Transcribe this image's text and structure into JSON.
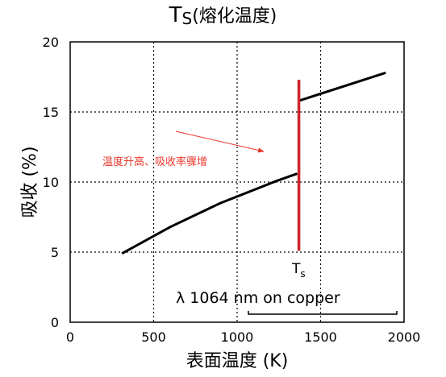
{
  "chart_data": {
    "type": "line",
    "title_main": "T",
    "title_sub": "S",
    "title_suffix": "(熔化温度)",
    "xlabel": "表面温度 (K)",
    "ylabel": "吸收 (%)",
    "xlim": [
      0,
      2000
    ],
    "ylim": [
      0,
      20
    ],
    "xticks": [
      0,
      500,
      1000,
      1500,
      2000
    ],
    "yticks": [
      0,
      5,
      10,
      15,
      20
    ],
    "grid": true,
    "series": [
      {
        "color": "#000000",
        "x": [
          310,
          600,
          900,
          1240,
          1360
        ],
        "y": [
          4.9,
          6.8,
          8.5,
          10.1,
          10.6
        ]
      },
      {
        "color": "#000000",
        "x": [
          1370,
          1890
        ],
        "y": [
          15.8,
          17.8
        ]
      }
    ],
    "melting_line": {
      "x": 1370,
      "y_from": 5.1,
      "y_to": 17.3,
      "color": "#d0232a"
    },
    "ts_label_main": "T",
    "ts_label_sub": "s",
    "annotation_text": "温度升高、吸收率骤增",
    "annotation_color": "#e8362b",
    "wavelength_note": "λ 1064 nm on copper"
  }
}
